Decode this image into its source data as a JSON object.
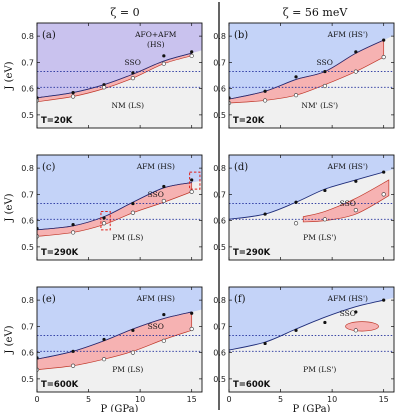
{
  "column_titles": [
    "ζ = 0",
    "ζ = 56 meV"
  ],
  "chart_data": [
    {
      "panel": "a",
      "label": "(a)",
      "temperature": "T=20K",
      "xlim": [
        0,
        16
      ],
      "ylim": [
        0.45,
        0.85
      ],
      "yticks": [
        0.5,
        0.6,
        0.7,
        0.8
      ],
      "upper_label": [
        "AFO+AFM",
        "(HS)"
      ],
      "middle_label": "SSO",
      "lower_label": "NM (LS)",
      "upper_color": "#c9c2ee",
      "boundary_upper": {
        "x": [
          0,
          3.5,
          6.5,
          9.3,
          12.3,
          15
        ],
        "y": [
          0.565,
          0.585,
          0.615,
          0.655,
          0.705,
          0.735
        ]
      },
      "boundary_lower": {
        "x": [
          0,
          3.5,
          6.5,
          9.3,
          12.3,
          15
        ],
        "y": [
          0.55,
          0.57,
          0.6,
          0.64,
          0.695,
          0.725
        ]
      },
      "points_filled": {
        "x": [
          0,
          3.5,
          6.5,
          9.3,
          12.3,
          15
        ],
        "y": [
          0.565,
          0.585,
          0.615,
          0.66,
          0.725,
          0.74
        ]
      },
      "points_open": {
        "x": [
          0,
          3.5,
          6.5,
          9.3,
          12.3,
          15
        ],
        "y": [
          0.555,
          0.57,
          0.605,
          0.64,
          0.695,
          0.725
        ]
      },
      "hlines": [
        0.665,
        0.605
      ]
    },
    {
      "panel": "b",
      "label": "(b)",
      "temperature": "T=20K",
      "xlim": [
        0,
        16
      ],
      "ylim": [
        0.45,
        0.85
      ],
      "yticks": [
        0.5,
        0.6,
        0.7,
        0.8
      ],
      "upper_label": [
        "AFM (HS')"
      ],
      "middle_label": "SSO",
      "lower_label": "NM' (LS')",
      "upper_color": "#c4d3f8",
      "boundary_upper": {
        "x": [
          0,
          3.5,
          6.5,
          9.3,
          12.3,
          15
        ],
        "y": [
          0.56,
          0.59,
          0.635,
          0.665,
          0.735,
          0.785
        ]
      },
      "boundary_lower": {
        "x": [
          0,
          3.5,
          6.5,
          9.3,
          12.3,
          15
        ],
        "y": [
          0.545,
          0.555,
          0.575,
          0.615,
          0.665,
          0.72
        ]
      },
      "points_filled": {
        "x": [
          0,
          3.5,
          6.5,
          9.3,
          12.3,
          15
        ],
        "y": [
          0.565,
          0.59,
          0.645,
          0.665,
          0.74,
          0.785
        ]
      },
      "points_open": {
        "x": [
          0,
          3.5,
          6.5,
          9.3,
          12.3,
          15
        ],
        "y": [
          0.545,
          0.555,
          0.575,
          0.61,
          0.665,
          0.72
        ]
      },
      "hlines": [
        0.665,
        0.605
      ]
    },
    {
      "panel": "c",
      "label": "(c)",
      "temperature": "T=290K",
      "xlim": [
        0,
        16
      ],
      "ylim": [
        0.45,
        0.85
      ],
      "yticks": [
        0.5,
        0.6,
        0.7,
        0.8
      ],
      "upper_label": [
        "AFM (HS)"
      ],
      "middle_label": "SSO",
      "lower_label": "PM (LS)",
      "upper_color": "#c4d3f8",
      "boundary_upper": {
        "x": [
          0,
          3.5,
          6.5,
          9.3,
          12.3,
          15
        ],
        "y": [
          0.565,
          0.58,
          0.615,
          0.67,
          0.725,
          0.745
        ]
      },
      "boundary_lower": {
        "x": [
          0,
          3.5,
          6.5,
          9.3,
          12.3,
          15
        ],
        "y": [
          0.54,
          0.555,
          0.585,
          0.63,
          0.67,
          0.71
        ]
      },
      "points_filled": {
        "x": [
          0,
          3.5,
          6.5,
          9.3,
          12.3,
          15
        ],
        "y": [
          0.57,
          0.585,
          0.61,
          0.665,
          0.73,
          0.755
        ]
      },
      "points_open": {
        "x": [
          0,
          3.5,
          6.5,
          9.3,
          12.3,
          15
        ],
        "y": [
          0.54,
          0.555,
          0.59,
          0.63,
          0.675,
          0.71
        ]
      },
      "dashed_boxes": [
        {
          "x": [
            6.2,
            7.1
          ],
          "y": [
            0.565,
            0.635
          ]
        },
        {
          "x": [
            14.8,
            15.8
          ],
          "y": [
            0.72,
            0.785
          ]
        }
      ],
      "hlines": [
        0.665,
        0.605
      ]
    },
    {
      "panel": "d",
      "label": "(d)",
      "temperature": "T=290K",
      "xlim": [
        0,
        16
      ],
      "ylim": [
        0.45,
        0.85
      ],
      "yticks": [
        0.5,
        0.6,
        0.7,
        0.8
      ],
      "upper_label": [
        "AFM (HS')"
      ],
      "middle_label": "SSO",
      "lower_label": "PM (LS')",
      "upper_color": "#c4d3f8",
      "line": {
        "x": [
          0,
          3.5,
          6.5,
          9.3,
          12.3,
          15
        ],
        "y": [
          0.605,
          0.625,
          0.67,
          0.72,
          0.755,
          0.785
        ]
      },
      "closed_region_upper": {
        "x": [
          7.2,
          9.3,
          12.3,
          15.5
        ],
        "y": [
          0.615,
          0.635,
          0.685,
          0.755
        ]
      },
      "closed_region_lower": {
        "x": [
          7.2,
          9.3,
          12.3,
          15.5
        ],
        "y": [
          0.595,
          0.6,
          0.625,
          0.695
        ]
      },
      "points_filled": {
        "x": [
          3.5,
          6.5,
          9.3,
          12.3,
          15
        ],
        "y": [
          0.625,
          0.67,
          0.715,
          0.75,
          0.785
        ]
      },
      "points_open": {
        "x": [
          6.5,
          9.3,
          12.3,
          15
        ],
        "y": [
          0.59,
          0.605,
          0.64,
          0.7
        ]
      },
      "hlines": [
        0.665,
        0.605
      ]
    },
    {
      "panel": "e",
      "label": "(e)",
      "temperature": "T=600K",
      "xlim": [
        0,
        16
      ],
      "ylim": [
        0.45,
        0.85
      ],
      "yticks": [
        0.5,
        0.6,
        0.7,
        0.8
      ],
      "upper_label": [
        "AFM (HS)"
      ],
      "middle_label": "SSO",
      "lower_label": "PM (LS)",
      "upper_color": "#c4d3f8",
      "boundary_upper": {
        "x": [
          0,
          3.5,
          6.5,
          9.3,
          12.3,
          15
        ],
        "y": [
          0.575,
          0.605,
          0.645,
          0.69,
          0.73,
          0.755
        ]
      },
      "boundary_lower": {
        "x": [
          0,
          3.5,
          6.5,
          9.3,
          12.3,
          15
        ],
        "y": [
          0.535,
          0.55,
          0.575,
          0.605,
          0.65,
          0.685
        ]
      },
      "points_filled": {
        "x": [
          0,
          3.5,
          6.5,
          9.3,
          12.3,
          15
        ],
        "y": [
          0.58,
          0.605,
          0.65,
          0.685,
          0.745,
          0.75
        ]
      },
      "points_open": {
        "x": [
          0,
          3.5,
          6.5,
          9.3,
          12.3,
          15
        ],
        "y": [
          0.535,
          0.55,
          0.575,
          0.6,
          0.645,
          0.69
        ]
      },
      "hlines": [
        0.665,
        0.605
      ]
    },
    {
      "panel": "f",
      "label": "(f)",
      "temperature": "T=600K",
      "xlim": [
        0,
        16
      ],
      "ylim": [
        0.45,
        0.85
      ],
      "yticks": [
        0.5,
        0.6,
        0.7,
        0.8
      ],
      "upper_label": [
        "AFM (HS')"
      ],
      "middle_label": "SSO",
      "lower_label": "PM (LS')",
      "upper_color": "#c4d3f8",
      "line": {
        "x": [
          0,
          3.5,
          6.5,
          9.3,
          12.3,
          15
        ],
        "y": [
          0.61,
          0.64,
          0.69,
          0.735,
          0.775,
          0.8
        ]
      },
      "bubble": {
        "cx": 12.9,
        "cy": 0.7,
        "rx": 1.6,
        "ry": 0.018
      },
      "points_filled": {
        "x": [
          3.5,
          6.5,
          9.3,
          12.3,
          15
        ],
        "y": [
          0.635,
          0.685,
          0.715,
          0.755,
          0.8
        ]
      },
      "points_open": {
        "x": [
          12.3
        ],
        "y": [
          0.685
        ]
      },
      "hlines": [
        0.665,
        0.605
      ]
    }
  ],
  "axes": {
    "ylabel": "J (eV)",
    "xlabel": "P (GPa)",
    "xticks": [
      0,
      5,
      10,
      15
    ]
  }
}
